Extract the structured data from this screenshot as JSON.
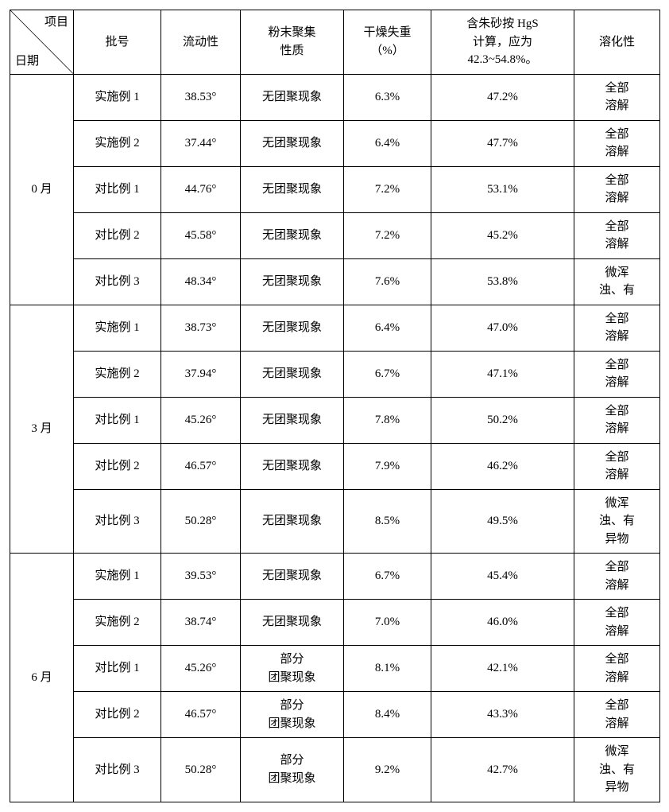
{
  "header": {
    "diag_top": "项目",
    "diag_bottom": "日期",
    "cols": [
      "批号",
      "流动性",
      "粉末聚集\n性质",
      "干燥失重\n（%）",
      "含朱砂按 HgS\n计算，应为\n42.3~54.8%。",
      "溶化性"
    ]
  },
  "groups": [
    {
      "period": "0 月",
      "rows": [
        {
          "batch": "实施例 1",
          "flow": "38.53°",
          "agg": "无团聚现象",
          "loss": "6.3%",
          "hgs": "47.2%",
          "sol": "全部\n溶解"
        },
        {
          "batch": "实施例 2",
          "flow": "37.44°",
          "agg": "无团聚现象",
          "loss": "6.4%",
          "hgs": "47.7%",
          "sol": "全部\n溶解"
        },
        {
          "batch": "对比例 1",
          "flow": "44.76°",
          "agg": "无团聚现象",
          "loss": "7.2%",
          "hgs": "53.1%",
          "sol": "全部\n溶解"
        },
        {
          "batch": "对比例 2",
          "flow": "45.58°",
          "agg": "无团聚现象",
          "loss": "7.2%",
          "hgs": "45.2%",
          "sol": "全部\n溶解"
        },
        {
          "batch": "对比例 3",
          "flow": "48.34°",
          "agg": "无团聚现象",
          "loss": "7.6%",
          "hgs": "53.8%",
          "sol": "微浑\n浊、有"
        }
      ]
    },
    {
      "period": "3 月",
      "rows": [
        {
          "batch": "实施例 1",
          "flow": "38.73°",
          "agg": "无团聚现象",
          "loss": "6.4%",
          "hgs": "47.0%",
          "sol": "全部\n溶解"
        },
        {
          "batch": "实施例 2",
          "flow": "37.94°",
          "agg": "无团聚现象",
          "loss": "6.7%",
          "hgs": "47.1%",
          "sol": "全部\n溶解"
        },
        {
          "batch": "对比例 1",
          "flow": "45.26°",
          "agg": "无团聚现象",
          "loss": "7.8%",
          "hgs": "50.2%",
          "sol": "全部\n溶解"
        },
        {
          "batch": "对比例 2",
          "flow": "46.57°",
          "agg": "无团聚现象",
          "loss": "7.9%",
          "hgs": "46.2%",
          "sol": "全部\n溶解"
        },
        {
          "batch": "对比例 3",
          "flow": "50.28°",
          "agg": "无团聚现象",
          "loss": "8.5%",
          "hgs": "49.5%",
          "sol": "微浑\n浊、有\n异物"
        }
      ]
    },
    {
      "period": "6 月",
      "rows": [
        {
          "batch": "实施例 1",
          "flow": "39.53°",
          "agg": "无团聚现象",
          "loss": "6.7%",
          "hgs": "45.4%",
          "sol": "全部\n溶解"
        },
        {
          "batch": "实施例 2",
          "flow": "38.74°",
          "agg": "无团聚现象",
          "loss": "7.0%",
          "hgs": "46.0%",
          "sol": "全部\n溶解"
        },
        {
          "batch": "对比例 1",
          "flow": "45.26°",
          "agg": "部分\n团聚现象",
          "loss": "8.1%",
          "hgs": "42.1%",
          "sol": "全部\n溶解"
        },
        {
          "batch": "对比例 2",
          "flow": "46.57°",
          "agg": "部分\n团聚现象",
          "loss": "8.4%",
          "hgs": "43.3%",
          "sol": "全部\n溶解"
        },
        {
          "batch": "对比例 3",
          "flow": "50.28°",
          "agg": "部分\n团聚现象",
          "loss": "9.2%",
          "hgs": "42.7%",
          "sol": "微浑\n浊、有\n异物"
        }
      ]
    }
  ]
}
